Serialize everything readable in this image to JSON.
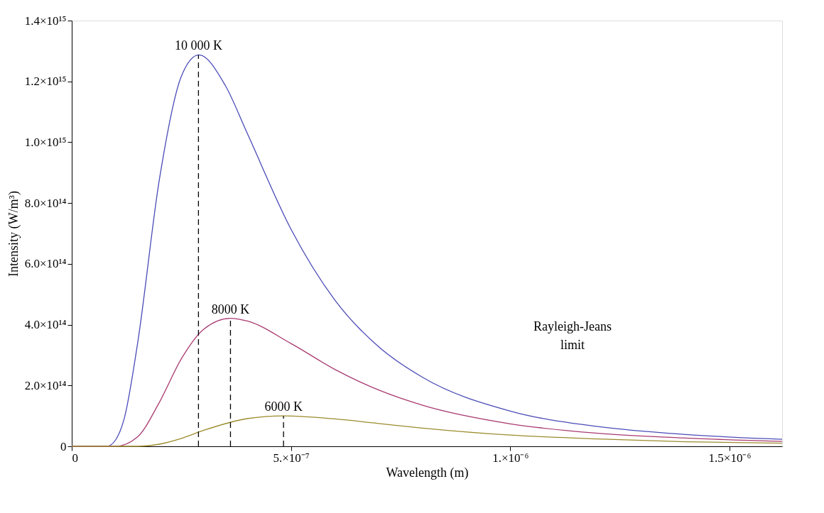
{
  "chart_data": {
    "type": "line",
    "xlabel": "Wavelength (m)",
    "ylabel": "Intensity (W/m³)",
    "xlim": [
      0,
      1.62e-06
    ],
    "ylim": [
      0,
      1400000000000000.0
    ],
    "xticks": [
      0,
      {
        "value": 5e-07,
        "label": "5.×10⁻⁷"
      },
      {
        "value": 1e-06,
        "label": "1.×10⁻⁶"
      },
      {
        "value": 1.5e-06,
        "label": "1.5×10⁻⁶"
      }
    ],
    "yticks": [
      0,
      {
        "value": 200000000000000.0,
        "label": "2.0×10¹⁴"
      },
      {
        "value": 400000000000000.0,
        "label": "4.0×10¹⁴"
      },
      {
        "value": 600000000000000.0,
        "label": "6.0×10¹⁴"
      },
      {
        "value": 800000000000000.0,
        "label": "8.0×10¹⁴"
      },
      {
        "value": 1000000000000000.0,
        "label": "1.0×10¹⁵"
      },
      {
        "value": 1200000000000000.0,
        "label": "1.2×10¹⁵"
      },
      {
        "value": 1400000000000000.0,
        "label": "1.4×10¹⁵"
      }
    ],
    "grid": false,
    "marker": "none",
    "line_style": "solid",
    "series": [
      {
        "color": "#4b4bb8",
        "x": [
          0,
          8e-08,
          1e-07,
          1.2e-07,
          1.5e-07,
          2e-07,
          2.5e-07,
          2.9e-07,
          3.5e-07,
          4e-07,
          5e-07,
          6e-07,
          7e-07,
          8e-07,
          1e-06,
          1.2e-06,
          1.4e-06,
          1.62e-06
        ],
        "values": [
          0,
          0,
          21000000000000.0,
          93000000000000.0,
          337000000000000.0,
          879000000000000.0,
          1217000000000000.0,
          1287000000000000.0,
          1187000000000000.0,
          1030000000000000.0,
          714000000000000.0,
          481000000000000.0,
          327000000000000.0,
          227000000000000.0,
          116000000000000.0,
          65000000000000.0,
          39000000000000.0,
          23000000000000.0
        ]
      },
      {
        "color": "#a83a70",
        "x": [
          0,
          1e-07,
          1.5e-07,
          2e-07,
          2.5e-07,
          3e-07,
          3.62e-07,
          4e-07,
          5e-07,
          6e-07,
          7e-07,
          8e-07,
          1e-06,
          1.2e-06,
          1.4e-06,
          1.62e-06
        ],
        "values": [
          0,
          0,
          31000000000000.0,
          145000000000000.0,
          288000000000000.0,
          384000000000000.0,
          421000000000000.0,
          412000000000000.0,
          338000000000000.0,
          253000000000000.0,
          185000000000000.0,
          135000000000000.0,
          74000000000000.0,
          43000000000000.0,
          27000000000000.0,
          16000000000000.0
        ]
      },
      {
        "color": "#9c8b2c",
        "x": [
          0,
          1.5e-07,
          2e-07,
          2.5e-07,
          3e-07,
          4e-07,
          4.83e-07,
          6e-07,
          7e-07,
          8e-07,
          1e-06,
          1.2e-06,
          1.4e-06,
          1.62e-06
        ],
        "values": [
          0,
          0,
          7000000000000.0,
          26000000000000.0,
          52000000000000.0,
          91000000000000.0,
          100000000000000.0,
          90000000000000.0,
          75000000000000.0,
          60000000000000.0,
          37000000000000.0,
          24000000000000.0,
          15000000000000.0,
          10000000000000.0
        ]
      },
      {
        "type": "line",
        "line_style": "dashed",
        "color": "#000000",
        "x": [
          2.89e-07,
          2.89e-07
        ],
        "values": [
          0,
          1287000000000000.0
        ]
      },
      {
        "type": "line",
        "line_style": "dashed",
        "color": "#000000",
        "x": [
          3.62e-07,
          3.62e-07
        ],
        "values": [
          0,
          421000000000000.0
        ]
      },
      {
        "type": "line",
        "line_style": "dashed",
        "color": "#000000",
        "x": [
          4.83e-07,
          4.83e-07
        ],
        "values": [
          0,
          100000000000000.0
        ]
      }
    ],
    "annotations": [
      {
        "text": "10 000 K",
        "x": 2.89e-07,
        "y": 1287000000000000.0
      },
      {
        "text": "8000 K",
        "x": 3.62e-07,
        "y": 421000000000000.0
      },
      {
        "text": "6000 K",
        "x": 4.83e-07,
        "y": 100000000000000.0
      },
      "Rayleigh-Jeans\nlimit"
    ]
  }
}
